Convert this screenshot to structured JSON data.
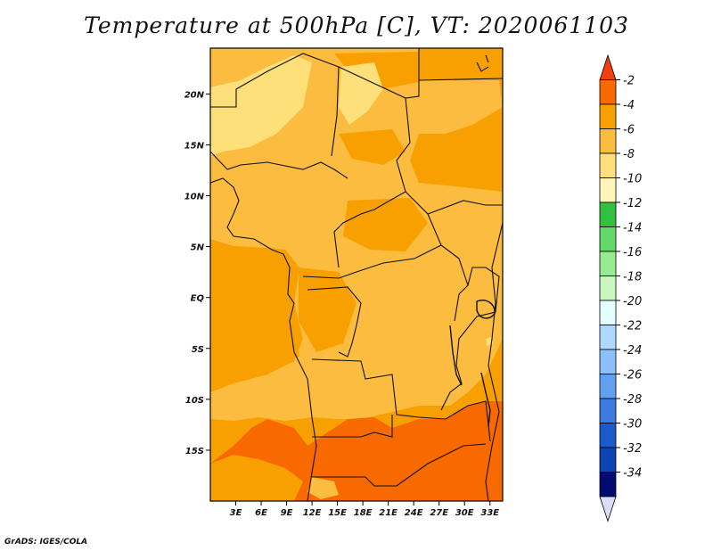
{
  "title": "Temperature at 500hPa [C], VT: 2020061103",
  "credit": "GrADS: IGES/COLA",
  "map": {
    "lon_range": [
      0,
      34.5
    ],
    "lat_range": [
      -20,
      24.5
    ],
    "lon_ticks": [
      "3E",
      "6E",
      "9E",
      "12E",
      "15E",
      "18E",
      "21E",
      "24E",
      "27E",
      "30E",
      "33E"
    ],
    "lat_ticks": [
      "20N",
      "15N",
      "10N",
      "5N",
      "EQ",
      "5S",
      "10S",
      "15S"
    ]
  },
  "colorbar": {
    "labels": [
      "-2",
      "-4",
      "-6",
      "-8",
      "-10",
      "-12",
      "-14",
      "-16",
      "-18",
      "-20",
      "-22",
      "-24",
      "-26",
      "-28",
      "-30",
      "-32",
      "-34"
    ],
    "colors": [
      "#f04010",
      "#f86a00",
      "#f8a000",
      "#fcbc40",
      "#fde07a",
      "#fff5b8",
      "#32c040",
      "#64d868",
      "#96ec8e",
      "#c8f8c0",
      "#e2ffff",
      "#aed8ff",
      "#8cc0fb",
      "#60a0ef",
      "#3c7ce0",
      "#1a5acb",
      "#0c44b4",
      "#000c70",
      "#dcdcf8"
    ]
  }
}
